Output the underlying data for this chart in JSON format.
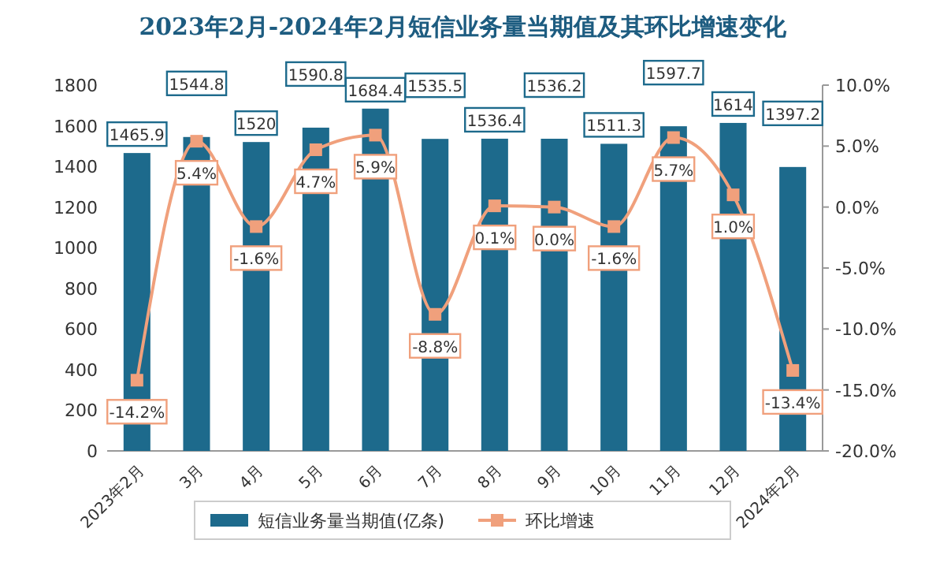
{
  "chart_data": {
    "type": "bar",
    "title": "2023年2月-2024年2月短信业务量当期值及其环比增速变化",
    "categories": [
      "2023年2月",
      "3月",
      "4月",
      "5月",
      "6月",
      "7月",
      "8月",
      "9月",
      "10月",
      "11月",
      "12月",
      "2024年2月"
    ],
    "series": [
      {
        "name": "短信业务量当期值(亿条)",
        "color": "#1d6a8c",
        "values": [
          1465.9,
          1544.8,
          1520,
          1590.8,
          1684.4,
          1535.5,
          1536.4,
          1536.2,
          1511.3,
          1597.7,
          1614,
          1397.2
        ],
        "value_labels": [
          "1465.9",
          "1544.8",
          "1520",
          "1590.8",
          "1684.4",
          "1535.5",
          "1536.4",
          "1536.2",
          "1511.3",
          "1597.7",
          "1614",
          "1397.2"
        ]
      },
      {
        "name": "环比增速",
        "type": "line",
        "axis": "y2",
        "color": "#f0a07c",
        "marker": "square",
        "values": [
          -14.2,
          5.4,
          -1.6,
          4.7,
          5.9,
          -8.8,
          0.1,
          0.0,
          -1.6,
          5.7,
          1.0,
          -13.4
        ],
        "value_labels": [
          "-14.2%",
          "5.4%",
          "-1.6%",
          "4.7%",
          "5.9%",
          "-8.8%",
          "0.1%",
          "0.0%",
          "-1.6%",
          "5.7%",
          "1.0%",
          "-13.4%"
        ]
      }
    ],
    "ylim": [
      0,
      1800
    ],
    "yticks": [
      0,
      200,
      400,
      600,
      800,
      1000,
      1200,
      1400,
      1600,
      1800
    ],
    "y2lim": [
      -20,
      10
    ],
    "y2ticks": [
      {
        "value": -20,
        "label": "-20.0%"
      },
      {
        "value": -15,
        "label": "-15.0%"
      },
      {
        "value": -10,
        "label": "-10.0%"
      },
      {
        "value": -5,
        "label": "-5.0%"
      },
      {
        "value": 0,
        "label": "0.0%"
      },
      {
        "value": 5,
        "label": "5.0%"
      },
      {
        "value": 10,
        "label": "10.0%"
      }
    ],
    "legend": "bottom"
  }
}
